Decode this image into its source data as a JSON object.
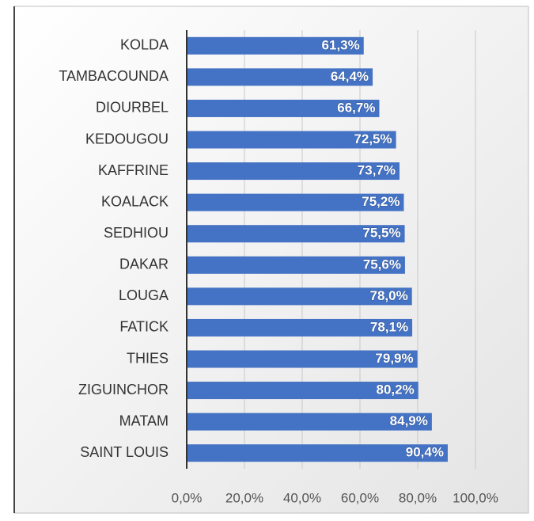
{
  "chart_data": {
    "type": "bar",
    "orientation": "horizontal",
    "categories": [
      "KOLDA",
      "TAMBACOUNDA",
      "DIOURBEL",
      "KEDOUGOU",
      "KAFFRINE",
      "KOALACK",
      "SEDHIOU",
      "DAKAR",
      "LOUGA",
      "FATICK",
      "THIES",
      "ZIGUINCHOR",
      "MATAM",
      "SAINT LOUIS"
    ],
    "values": [
      61.3,
      64.4,
      66.7,
      72.5,
      73.7,
      75.2,
      75.5,
      75.6,
      78.0,
      78.1,
      79.9,
      80.2,
      84.9,
      90.4
    ],
    "value_labels": [
      "61,3%",
      "64,4%",
      "66,7%",
      "72,5%",
      "73,7%",
      "75,2%",
      "75,5%",
      "75,6%",
      "78,0%",
      "78,1%",
      "79,9%",
      "80,2%",
      "84,9%",
      "90,4%"
    ],
    "color": "#4472c4",
    "xlim": [
      0,
      100
    ],
    "xticks": [
      {
        "value": 0,
        "label": "0,0%"
      },
      {
        "value": 20,
        "label": "20,0%"
      },
      {
        "value": 40,
        "label": "40,0%"
      },
      {
        "value": 60,
        "label": "60,0%"
      },
      {
        "value": 80,
        "label": "80,0%"
      },
      {
        "value": 100,
        "label": "100,0%"
      }
    ],
    "grid": true
  }
}
